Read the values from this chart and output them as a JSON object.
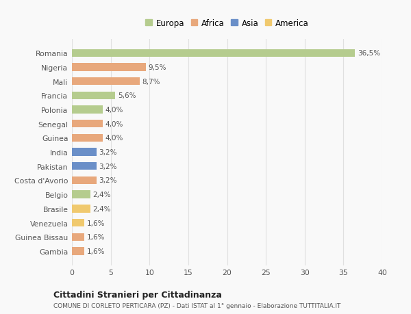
{
  "categories": [
    "Romania",
    "Nigeria",
    "Mali",
    "Francia",
    "Polonia",
    "Senegal",
    "Guinea",
    "India",
    "Pakistan",
    "Costa d'Avorio",
    "Belgio",
    "Brasile",
    "Venezuela",
    "Guinea Bissau",
    "Gambia"
  ],
  "values": [
    36.5,
    9.5,
    8.7,
    5.6,
    4.0,
    4.0,
    4.0,
    3.2,
    3.2,
    3.2,
    2.4,
    2.4,
    1.6,
    1.6,
    1.6
  ],
  "labels": [
    "36,5%",
    "9,5%",
    "8,7%",
    "5,6%",
    "4,0%",
    "4,0%",
    "4,0%",
    "3,2%",
    "3,2%",
    "3,2%",
    "2,4%",
    "2,4%",
    "1,6%",
    "1,6%",
    "1,6%"
  ],
  "continents": [
    "Europa",
    "Africa",
    "Africa",
    "Europa",
    "Europa",
    "Africa",
    "Africa",
    "Asia",
    "Asia",
    "Africa",
    "Europa",
    "America",
    "America",
    "Africa",
    "Africa"
  ],
  "colors": {
    "Europa": "#b5cc8e",
    "Africa": "#e8a87c",
    "Asia": "#6a8fc8",
    "America": "#f0c96e"
  },
  "legend_items": [
    "Europa",
    "Africa",
    "Asia",
    "America"
  ],
  "title": "Cittadini Stranieri per Cittadinanza",
  "subtitle": "COMUNE DI CORLETO PERTICARA (PZ) - Dati ISTAT al 1° gennaio - Elaborazione TUTTITALIA.IT",
  "xlim": [
    0,
    40
  ],
  "xticks": [
    0,
    5,
    10,
    15,
    20,
    25,
    30,
    35,
    40
  ],
  "background_color": "#f9f9f9",
  "grid_color": "#e0e0e0",
  "bar_height": 0.55
}
